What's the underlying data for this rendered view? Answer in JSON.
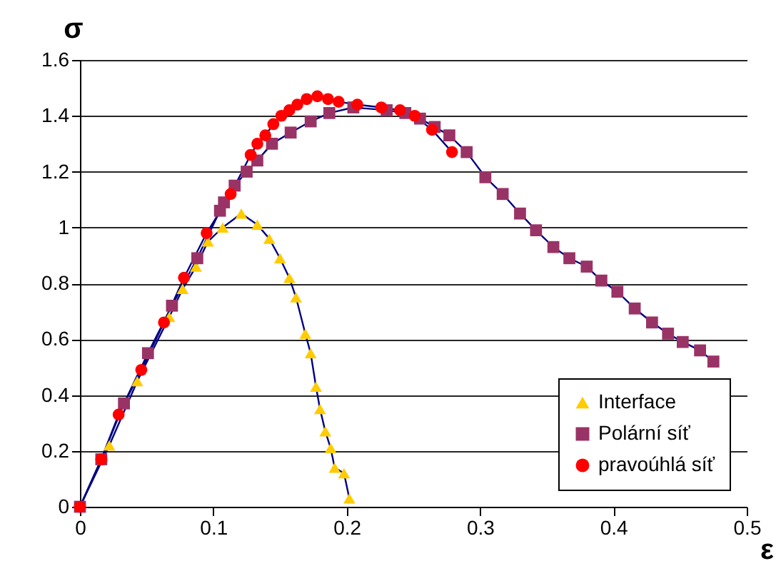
{
  "chart_data": {
    "type": "line",
    "xlabel": "ε",
    "ylabel": "σ",
    "xlim": [
      0,
      0.5
    ],
    "ylim": [
      0,
      1.6
    ],
    "xticks": [
      0,
      0.1,
      0.2,
      0.3,
      0.4,
      0.5
    ],
    "yticks": [
      0,
      0.2,
      0.4,
      0.6,
      0.8,
      1,
      1.2,
      1.4,
      1.6
    ],
    "grid": "y",
    "legend": "bottom right",
    "line_style": "solid",
    "series": [
      {
        "name": "Interface",
        "color": "#ffcc00",
        "marker": "triangle",
        "x": [
          0,
          0.022,
          0.043,
          0.067,
          0.077,
          0.087,
          0.096,
          0.107,
          0.121,
          0.133,
          0.142,
          0.15,
          0.157,
          0.162,
          0.169,
          0.173,
          0.177,
          0.18,
          0.184,
          0.188,
          0.191,
          0.198,
          0.202
        ],
        "values": [
          0,
          0.22,
          0.45,
          0.68,
          0.78,
          0.86,
          0.95,
          1.0,
          1.05,
          1.01,
          0.96,
          0.89,
          0.82,
          0.75,
          0.62,
          0.55,
          0.43,
          0.35,
          0.27,
          0.21,
          0.14,
          0.12,
          0.03
        ]
      },
      {
        "name": "Polární síť",
        "color": "#993366",
        "marker": "square",
        "x": [
          0,
          0.016,
          0.033,
          0.051,
          0.069,
          0.088,
          0.105,
          0.108,
          0.116,
          0.125,
          0.133,
          0.144,
          0.158,
          0.173,
          0.187,
          0.205,
          0.23,
          0.244,
          0.255,
          0.266,
          0.277,
          0.29,
          0.304,
          0.317,
          0.33,
          0.342,
          0.355,
          0.367,
          0.38,
          0.391,
          0.403,
          0.416,
          0.429,
          0.441,
          0.452,
          0.465,
          0.475
        ],
        "values": [
          0,
          0.17,
          0.37,
          0.55,
          0.72,
          0.89,
          1.06,
          1.09,
          1.15,
          1.2,
          1.24,
          1.3,
          1.34,
          1.38,
          1.41,
          1.43,
          1.42,
          1.41,
          1.39,
          1.36,
          1.33,
          1.27,
          1.18,
          1.12,
          1.05,
          0.99,
          0.93,
          0.89,
          0.86,
          0.81,
          0.77,
          0.71,
          0.66,
          0.62,
          0.59,
          0.56,
          0.52
        ]
      },
      {
        "name": "pravoúhlá síť",
        "color": "#ff0000",
        "marker": "circle",
        "x": [
          0,
          0.016,
          0.029,
          0.046,
          0.063,
          0.078,
          0.095,
          0.113,
          0.128,
          0.133,
          0.139,
          0.145,
          0.151,
          0.157,
          0.163,
          0.17,
          0.178,
          0.186,
          0.194,
          0.208,
          0.226,
          0.24,
          0.251,
          0.264,
          0.279
        ],
        "values": [
          0,
          0.17,
          0.33,
          0.49,
          0.66,
          0.82,
          0.98,
          1.12,
          1.26,
          1.3,
          1.33,
          1.37,
          1.4,
          1.42,
          1.44,
          1.46,
          1.47,
          1.46,
          1.45,
          1.44,
          1.43,
          1.42,
          1.4,
          1.35,
          1.27
        ]
      }
    ]
  }
}
